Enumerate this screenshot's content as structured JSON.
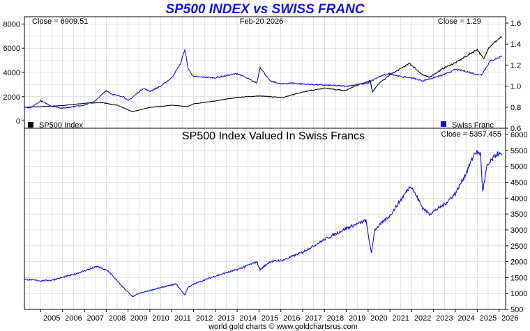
{
  "title": "SP500 INDEX vs SWISS FRANC",
  "footer": "world gold charts © www.goldchartsrus.com",
  "colors": {
    "sp500": "#000000",
    "franc": "#1010e0",
    "ratio": "#1010e0",
    "grid": "#c9ced6"
  },
  "chart_data": [
    {
      "type": "line",
      "title": "SP500 INDEX vs SWISS FRANC",
      "date_label": "Feb-20  2026",
      "left_readout": "Close = 6909.51",
      "right_readout": "Close = 1.29",
      "legend_left": "SP500 Index",
      "legend_right": "Swiss Franc",
      "x_ticks": [
        "2005",
        "2006",
        "2007",
        "2008",
        "2009",
        "2010",
        "2011",
        "2012",
        "2013",
        "2014",
        "2015",
        "2016",
        "2017",
        "2018",
        "2019",
        "2020",
        "2021",
        "2022",
        "2023",
        "2024",
        "2025",
        "2026"
      ],
      "xlim": [
        2004.25,
        2026.3
      ],
      "y_left_ticks": [
        "0",
        "2000",
        "4000",
        "6000",
        "8000"
      ],
      "y_left_lim": [
        -600,
        8600
      ],
      "y_right_ticks": [
        "0.6",
        "0.8",
        "1.0",
        "1.2",
        "1.4",
        "1.6"
      ],
      "y_right_lim": [
        0.6,
        1.66
      ],
      "grid": true,
      "series": [
        {
          "name": "SP500 Index",
          "axis": "left",
          "x": [
            2004.25,
            2005,
            2006,
            2007,
            2007.8,
            2008.5,
            2009.2,
            2010,
            2011,
            2011.7,
            2012,
            2013,
            2014,
            2015,
            2016.1,
            2017,
            2018,
            2018.95,
            2019.5,
            2020.1,
            2020.2,
            2020.5,
            2021,
            2021.9,
            2022.5,
            2022.8,
            2023.5,
            2024,
            2025,
            2025.3,
            2025.5,
            2026,
            2026.13
          ],
          "y": [
            1130,
            1180,
            1270,
            1460,
            1510,
            1300,
            760,
            1120,
            1300,
            1190,
            1400,
            1650,
            1950,
            2060,
            1930,
            2400,
            2700,
            2500,
            2950,
            3350,
            2400,
            3100,
            3800,
            4750,
            3800,
            3600,
            4400,
            4800,
            5900,
            5100,
            6000,
            6800,
            6909.51
          ]
        },
        {
          "name": "Swiss Franc",
          "axis": "right",
          "x": [
            2004.25,
            2004.5,
            2005,
            2005.5,
            2006,
            2007,
            2007.5,
            2008,
            2008.3,
            2008.8,
            2009,
            2009.7,
            2010,
            2010.5,
            2011,
            2011.4,
            2011.6,
            2011.75,
            2012,
            2013,
            2014,
            2014.9,
            2015.05,
            2015.5,
            2016,
            2016.5,
            2017,
            2018,
            2019,
            2020,
            2020.5,
            2021,
            2021.5,
            2022,
            2022.5,
            2023,
            2023.5,
            2024,
            2024.5,
            2025,
            2025.2,
            2025.6,
            2026,
            2026.13
          ],
          "y": [
            0.8,
            0.79,
            0.86,
            0.81,
            0.79,
            0.82,
            0.86,
            0.96,
            0.92,
            0.9,
            0.86,
            0.98,
            0.95,
            1.0,
            1.08,
            1.21,
            1.35,
            1.17,
            1.09,
            1.08,
            1.12,
            1.03,
            1.18,
            1.05,
            1.02,
            1.03,
            1.02,
            1.01,
            1.0,
            1.03,
            1.09,
            1.12,
            1.09,
            1.08,
            1.05,
            1.08,
            1.11,
            1.16,
            1.14,
            1.11,
            1.11,
            1.24,
            1.27,
            1.29
          ]
        }
      ]
    },
    {
      "type": "line",
      "title": "SP500 Index Valued In Swiss Francs",
      "readout": "Close = 5357.455",
      "y_ticks": [
        "500",
        "1000",
        "1500",
        "2000",
        "2500",
        "3000",
        "3500",
        "4000",
        "4500",
        "5000",
        "5500",
        "6000"
      ],
      "ylim": [
        500,
        6200
      ],
      "xlim": [
        2004.25,
        2026.3
      ],
      "grid": true,
      "series": [
        {
          "name": "",
          "x": [
            2004.25,
            2005,
            2005.5,
            2006.5,
            2007.6,
            2008.1,
            2008.7,
            2009.2,
            2009.5,
            2010.3,
            2011.2,
            2011.6,
            2011.75,
            2012.2,
            2013,
            2014,
            2014.9,
            2015.05,
            2015.5,
            2016.1,
            2017,
            2018,
            2019,
            2019.9,
            2020.15,
            2020.3,
            2020.6,
            2021,
            2021.95,
            2022.5,
            2022.8,
            2023.5,
            2024,
            2024.5,
            2024.9,
            2025.15,
            2025.25,
            2025.45,
            2025.9,
            2026.13
          ],
          "y": [
            1450,
            1400,
            1420,
            1600,
            1850,
            1700,
            1250,
            900,
            1000,
            1150,
            1300,
            950,
            1200,
            1350,
            1550,
            1750,
            2000,
            1750,
            2000,
            2050,
            2300,
            2700,
            3050,
            3300,
            2250,
            3000,
            3200,
            3450,
            4400,
            3700,
            3500,
            3800,
            4150,
            4800,
            5450,
            5400,
            4200,
            5000,
            5400,
            5357.455
          ]
        }
      ]
    }
  ]
}
